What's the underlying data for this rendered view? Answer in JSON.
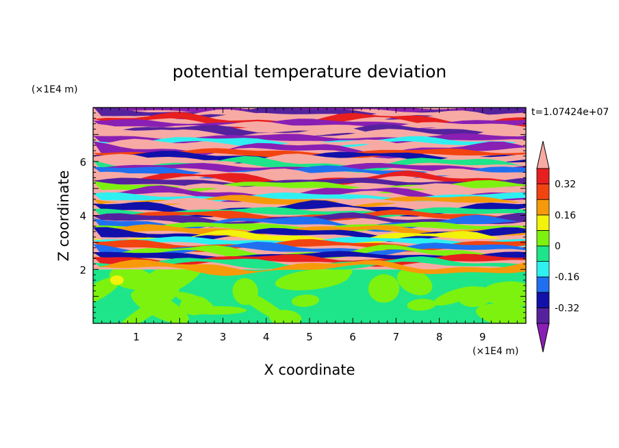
{
  "chart_data": {
    "type": "heatmap",
    "title": "potential temperature deviation",
    "xlabel": "X coordinate",
    "ylabel": "Z coordinate",
    "x_unit": "(×1E4 m)",
    "z_unit": "(×1E4 m)",
    "time_label": "t=1.07424e+07",
    "xlim": [
      0,
      10
    ],
    "ylim": [
      0,
      8
    ],
    "xticks": [
      1,
      2,
      3,
      4,
      5,
      6,
      7,
      8,
      9
    ],
    "yticks": [
      2,
      4,
      6
    ],
    "colorbar": {
      "levels": [
        -0.4,
        -0.32,
        -0.24,
        -0.16,
        -0.08,
        0,
        0.08,
        0.16,
        0.24,
        0.32,
        0.4
      ],
      "labeled_levels": [
        0.32,
        0.16,
        0,
        -0.16,
        -0.32
      ],
      "colors": [
        "#8a1fb3",
        "#55229e",
        "#1111aa",
        "#1f6ff0",
        "#2ff0f0",
        "#1ee58a",
        "#7df20f",
        "#f2f20a",
        "#f79a0a",
        "#f24411",
        "#e71f1f",
        "#f7aaa4"
      ],
      "extend": "both"
    }
  }
}
